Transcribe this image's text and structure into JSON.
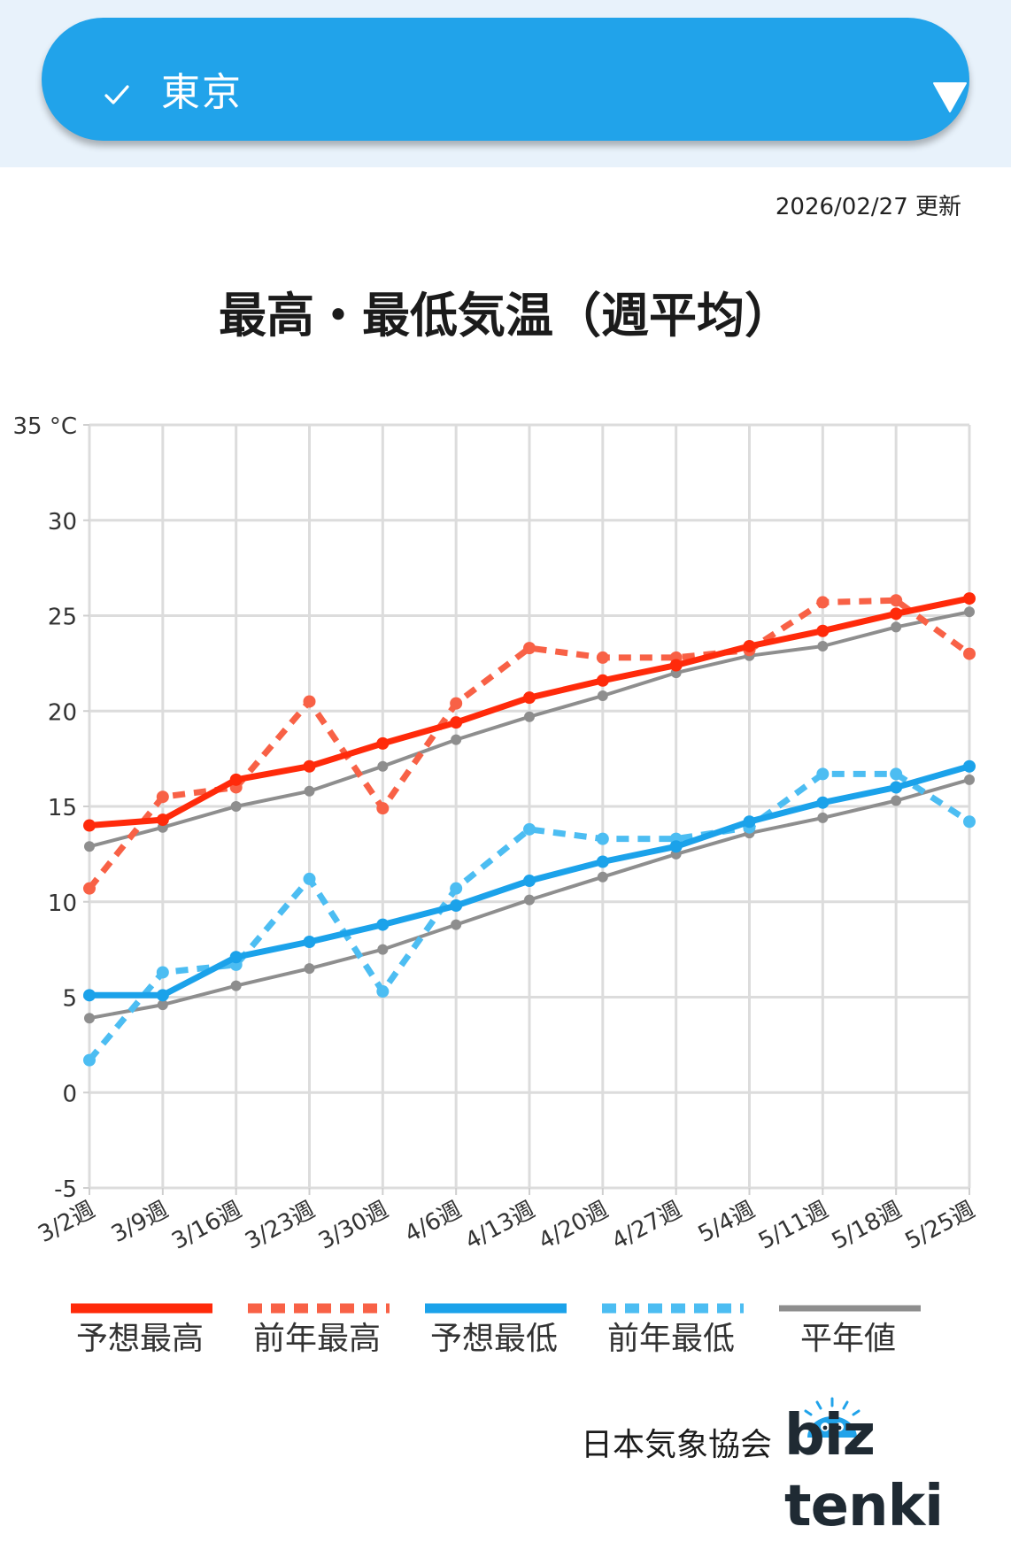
{
  "location_selector": {
    "selected": "東京",
    "check_icon": "check-icon",
    "dropdown_icon": "triangle-down-icon"
  },
  "updated": "2026/02/27 更新",
  "chart_data": {
    "type": "line",
    "title": "最高・最低気温（週平均）",
    "y_unit": "°C",
    "ylim": [
      -5,
      35
    ],
    "y_ticks": [
      -5,
      0,
      5,
      10,
      15,
      20,
      25,
      30,
      35
    ],
    "y_top_tick_label": "35 °C",
    "grid": true,
    "legend_position": "bottom",
    "categories": [
      "3/2週",
      "3/9週",
      "3/16週",
      "3/23週",
      "3/30週",
      "4/6週",
      "4/13週",
      "4/20週",
      "4/27週",
      "5/4週",
      "5/11週",
      "5/18週",
      "5/25週"
    ],
    "series": [
      {
        "name": "予想最高",
        "color": "#ff2a0a",
        "style": "solid",
        "values": [
          14.0,
          14.3,
          16.4,
          17.1,
          18.3,
          19.4,
          20.7,
          21.6,
          22.4,
          23.4,
          24.2,
          25.1,
          25.9
        ]
      },
      {
        "name": "前年最高",
        "color": "#f86146",
        "style": "dashed",
        "values": [
          10.7,
          15.5,
          16.0,
          20.5,
          14.9,
          20.4,
          23.3,
          22.8,
          22.8,
          23.2,
          25.7,
          25.8,
          23.0
        ]
      },
      {
        "name": "予想最低",
        "color": "#1ba2ea",
        "style": "solid",
        "values": [
          5.1,
          5.1,
          7.1,
          7.9,
          8.8,
          9.8,
          11.1,
          12.1,
          12.9,
          14.2,
          15.2,
          16.0,
          17.1
        ]
      },
      {
        "name": "前年最低",
        "color": "#4cbdf2",
        "style": "dashed",
        "values": [
          1.7,
          6.3,
          6.7,
          11.2,
          5.3,
          10.7,
          13.8,
          13.3,
          13.3,
          13.9,
          16.7,
          16.7,
          14.2
        ]
      },
      {
        "name": "平年値",
        "color": "#8e8e8e",
        "style": "solid-thin",
        "values_high": [
          12.9,
          13.9,
          15.0,
          15.8,
          17.1,
          18.5,
          19.7,
          20.8,
          22.0,
          22.9,
          23.4,
          24.4,
          25.2
        ],
        "values_low": [
          3.9,
          4.6,
          5.6,
          6.5,
          7.5,
          8.8,
          10.1,
          11.3,
          12.5,
          13.6,
          14.4,
          15.3,
          16.4
        ]
      }
    ]
  },
  "legend": {
    "items": [
      "予想最高",
      "前年最高",
      "予想最低",
      "前年最低",
      "平年値"
    ]
  },
  "footer": {
    "org": "日本気象協会",
    "brand": "biz tenki"
  }
}
